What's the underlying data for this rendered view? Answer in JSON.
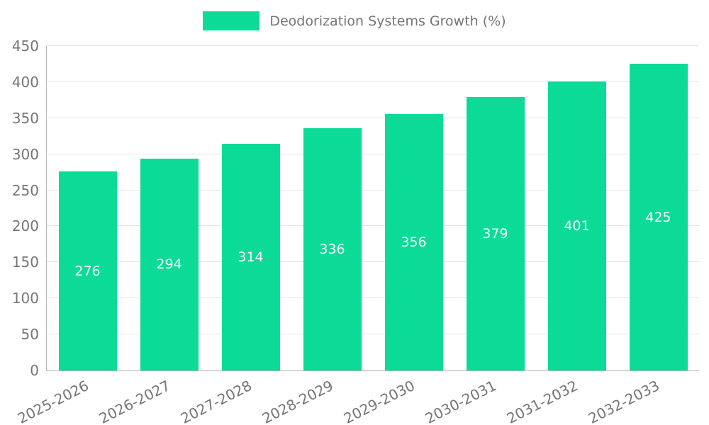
{
  "chart_data": {
    "type": "bar",
    "title": "Deodorization Systems Growth (%)",
    "categories": [
      "2025-2026",
      "2026-2027",
      "2027-2028",
      "2028-2029",
      "2029-2030",
      "2030-2031",
      "2031-2032",
      "2032-2033"
    ],
    "values": [
      276,
      294,
      314,
      336,
      356,
      379,
      401,
      425
    ],
    "xlabel": "",
    "ylabel": "",
    "ylim": [
      0,
      450
    ],
    "ytick_step": 50,
    "grid": true,
    "legend_position": "top",
    "legend_entries": [
      "Deodorization Systems Growth (%)"
    ],
    "bar_color": "#0bdb96",
    "bar_label_color": "#ffffff",
    "axis_text_color": "#757575",
    "gridline_color": "#e3e3e3",
    "background_color": "#ffffff"
  }
}
